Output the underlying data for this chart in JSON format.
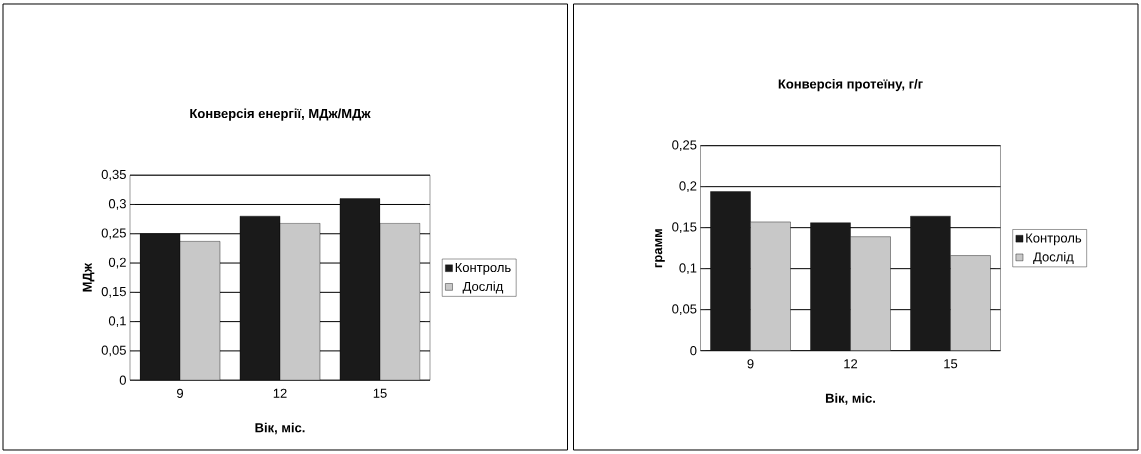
{
  "chart_data": [
    {
      "type": "bar",
      "title": "Конверсія енергії, МДж/МДж",
      "xlabel": "Вік, міс.",
      "ylabel": "МДж",
      "categories": [
        "9",
        "12",
        "15"
      ],
      "series": [
        {
          "name": "Контроль",
          "color": "#1a1a1a",
          "values": [
            0.25,
            0.28,
            0.31
          ]
        },
        {
          "name": "Дослід",
          "color": "#c8c8c8",
          "values": [
            0.237,
            0.268,
            0.268
          ]
        }
      ],
      "ylim": [
        0,
        0.35
      ],
      "yticks": [
        0,
        {
          "value": 0.05,
          "label": "0,05"
        },
        {
          "value": 0.1,
          "label": "0,1"
        },
        {
          "value": 0.15,
          "label": "0,15"
        },
        {
          "value": 0.2,
          "label": "0,2"
        },
        {
          "value": 0.25,
          "label": "0,25"
        },
        {
          "value": 0.3,
          "label": "0,3"
        },
        {
          "value": 0.35,
          "label": "0,35"
        }
      ],
      "grid": "y",
      "legend": "right"
    },
    {
      "type": "bar",
      "title": "Конверсія протеїну, г/г",
      "xlabel": "Вік, міс.",
      "ylabel": "грамм",
      "categories": [
        "9",
        "12",
        "15"
      ],
      "series": [
        {
          "name": "Контроль",
          "color": "#1a1a1a",
          "values": [
            0.194,
            0.156,
            0.164
          ]
        },
        {
          "name": "Дослід",
          "color": "#c8c8c8",
          "values": [
            0.157,
            0.139,
            0.116
          ]
        }
      ],
      "ylim": [
        0,
        0.25
      ],
      "yticks": [
        0,
        {
          "value": 0.05,
          "label": "0,05"
        },
        {
          "value": 0.1,
          "label": "0,1"
        },
        {
          "value": 0.15,
          "label": "0,15"
        },
        {
          "value": 0.2,
          "label": "0,2"
        },
        {
          "value": 0.25,
          "label": "0,25"
        }
      ],
      "grid": "y",
      "legend": "right"
    }
  ]
}
